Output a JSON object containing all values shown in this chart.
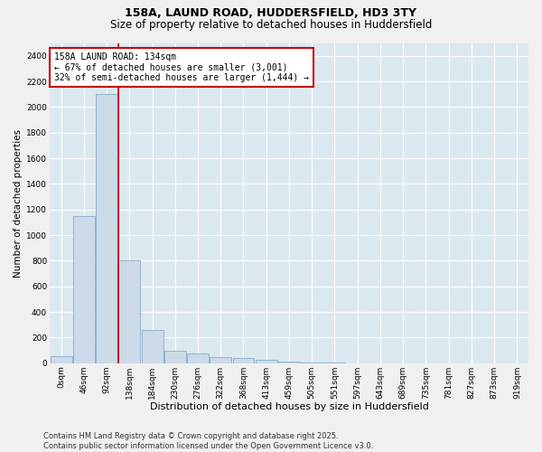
{
  "title1": "158A, LAUND ROAD, HUDDERSFIELD, HD3 3TY",
  "title2": "Size of property relative to detached houses in Huddersfield",
  "xlabel": "Distribution of detached houses by size in Huddersfield",
  "ylabel": "Number of detached properties",
  "bar_color": "#ccdaea",
  "bar_edge_color": "#88aacc",
  "background_color": "#dce8f0",
  "grid_color": "#ffffff",
  "fig_bg_color": "#f0f0f0",
  "categories": [
    "0sqm",
    "46sqm",
    "92sqm",
    "138sqm",
    "184sqm",
    "230sqm",
    "276sqm",
    "322sqm",
    "368sqm",
    "413sqm",
    "459sqm",
    "505sqm",
    "551sqm",
    "597sqm",
    "643sqm",
    "689sqm",
    "735sqm",
    "781sqm",
    "827sqm",
    "873sqm",
    "919sqm"
  ],
  "values": [
    55,
    1150,
    2100,
    800,
    260,
    95,
    75,
    50,
    40,
    25,
    10,
    4,
    2,
    1,
    0,
    0,
    0,
    0,
    0,
    0,
    0
  ],
  "redline_x": 2.5,
  "annotation_title": "158A LAUND ROAD: 134sqm",
  "annotation_line2": "← 67% of detached houses are smaller (3,001)",
  "annotation_line3": "32% of semi-detached houses are larger (1,444) →",
  "annotation_box_color": "#ffffff",
  "annotation_box_edge": "#cc0000",
  "ylim": [
    0,
    2500
  ],
  "yticks": [
    0,
    200,
    400,
    600,
    800,
    1000,
    1200,
    1400,
    1600,
    1800,
    2000,
    2200,
    2400
  ],
  "footer1": "Contains HM Land Registry data © Crown copyright and database right 2025.",
  "footer2": "Contains public sector information licensed under the Open Government Licence v3.0.",
  "title1_fontsize": 9,
  "title2_fontsize": 8.5,
  "xlabel_fontsize": 8,
  "ylabel_fontsize": 7.5,
  "tick_fontsize": 6.5,
  "footer_fontsize": 6,
  "annot_fontsize": 7
}
